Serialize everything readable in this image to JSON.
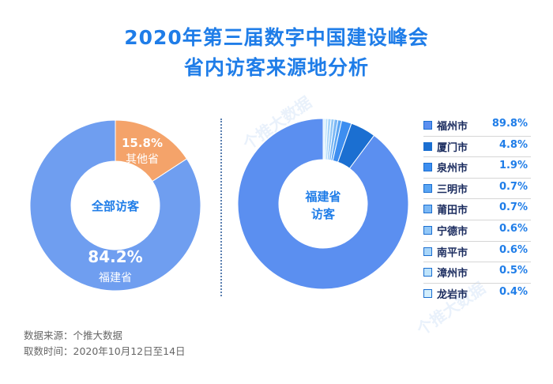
{
  "title_line1": "2020年第三届数字中国建设峰会",
  "title_line2": "省内访客来源地分析",
  "watermark": "个推大数据",
  "source_line": "数据来源：个推大数据",
  "time_line": "取数时间：2020年10月12日至14日",
  "colors": {
    "main_blue": "#6f9ef0",
    "other_orange": "#f4a36a",
    "accent": "#1f7de8"
  },
  "chart_data": [
    {
      "type": "pie",
      "variant": "donut",
      "center_label": "全部访客",
      "slices": [
        {
          "label": "福建省",
          "value": 84.2,
          "value_text": "84.2%",
          "color": "#6f9ef0"
        },
        {
          "label": "其他省",
          "value": 15.8,
          "value_text": "15.8%",
          "color": "#f4a36a"
        }
      ]
    },
    {
      "type": "pie",
      "variant": "donut",
      "center_label_line1": "福建省",
      "center_label_line2": "访客",
      "legend_position": "right",
      "slices": [
        {
          "label": "福州市",
          "value": 89.8,
          "value_text": "89.8%",
          "color": "#5b8ff0"
        },
        {
          "label": "厦门市",
          "value": 4.8,
          "value_text": "4.8%",
          "color": "#1b6fd1"
        },
        {
          "label": "泉州市",
          "value": 1.9,
          "value_text": "1.9%",
          "color": "#3d8ef0"
        },
        {
          "label": "三明市",
          "value": 0.7,
          "value_text": "0.7%",
          "color": "#5aa5f3"
        },
        {
          "label": "莆田市",
          "value": 0.7,
          "value_text": "0.7%",
          "color": "#7bb8f5"
        },
        {
          "label": "宁德市",
          "value": 0.6,
          "value_text": "0.6%",
          "color": "#93c8f7"
        },
        {
          "label": "南平市",
          "value": 0.6,
          "value_text": "0.6%",
          "color": "#a9d6f9"
        },
        {
          "label": "漳州市",
          "value": 0.5,
          "value_text": "0.5%",
          "color": "#bfe4fb"
        },
        {
          "label": "龙岩市",
          "value": 0.4,
          "value_text": "0.4%",
          "color": "#d3eefc"
        }
      ]
    }
  ]
}
